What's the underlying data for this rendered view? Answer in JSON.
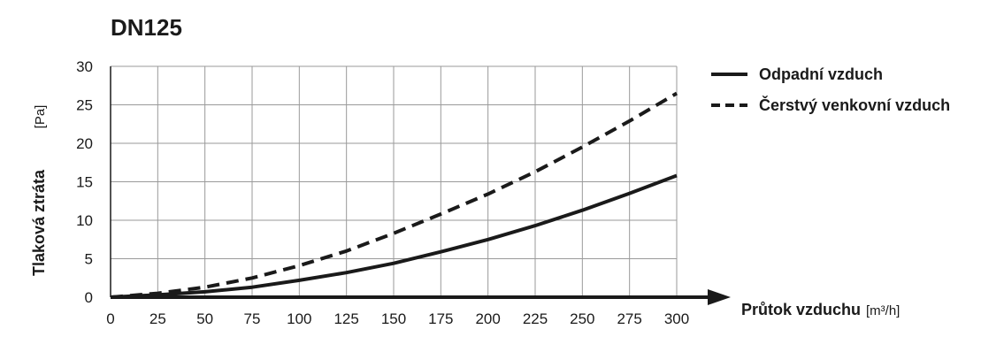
{
  "chart_data": {
    "type": "line",
    "title": "DN125",
    "xlabel": "Průtok vzduchu",
    "xunit": "[m³/h]",
    "ylabel": "Tlaková ztráta",
    "yunit": "[Pa]",
    "xlim": [
      0,
      300
    ],
    "ylim": [
      0,
      30
    ],
    "xticks": [
      0,
      25,
      50,
      75,
      100,
      125,
      150,
      175,
      200,
      225,
      250,
      275,
      300
    ],
    "yticks": [
      0,
      5,
      10,
      15,
      20,
      25,
      30
    ],
    "grid": true,
    "legend_position": "right",
    "series": [
      {
        "name": "Odpadní vzduch",
        "style": "solid",
        "color": "#1a1a1a",
        "x": [
          0,
          25,
          50,
          75,
          100,
          125,
          150,
          175,
          200,
          225,
          250,
          275,
          300
        ],
        "y": [
          0,
          0.3,
          0.7,
          1.3,
          2.2,
          3.2,
          4.4,
          5.9,
          7.5,
          9.3,
          11.3,
          13.5,
          15.8
        ]
      },
      {
        "name": "Čerstvý venkovní vzduch",
        "style": "dashed",
        "color": "#1a1a1a",
        "x": [
          0,
          25,
          50,
          75,
          100,
          125,
          150,
          175,
          200,
          225,
          250,
          275,
          300
        ],
        "y": [
          0,
          0.5,
          1.3,
          2.5,
          4.1,
          6.0,
          8.3,
          10.8,
          13.4,
          16.3,
          19.5,
          22.9,
          26.5
        ]
      }
    ]
  }
}
